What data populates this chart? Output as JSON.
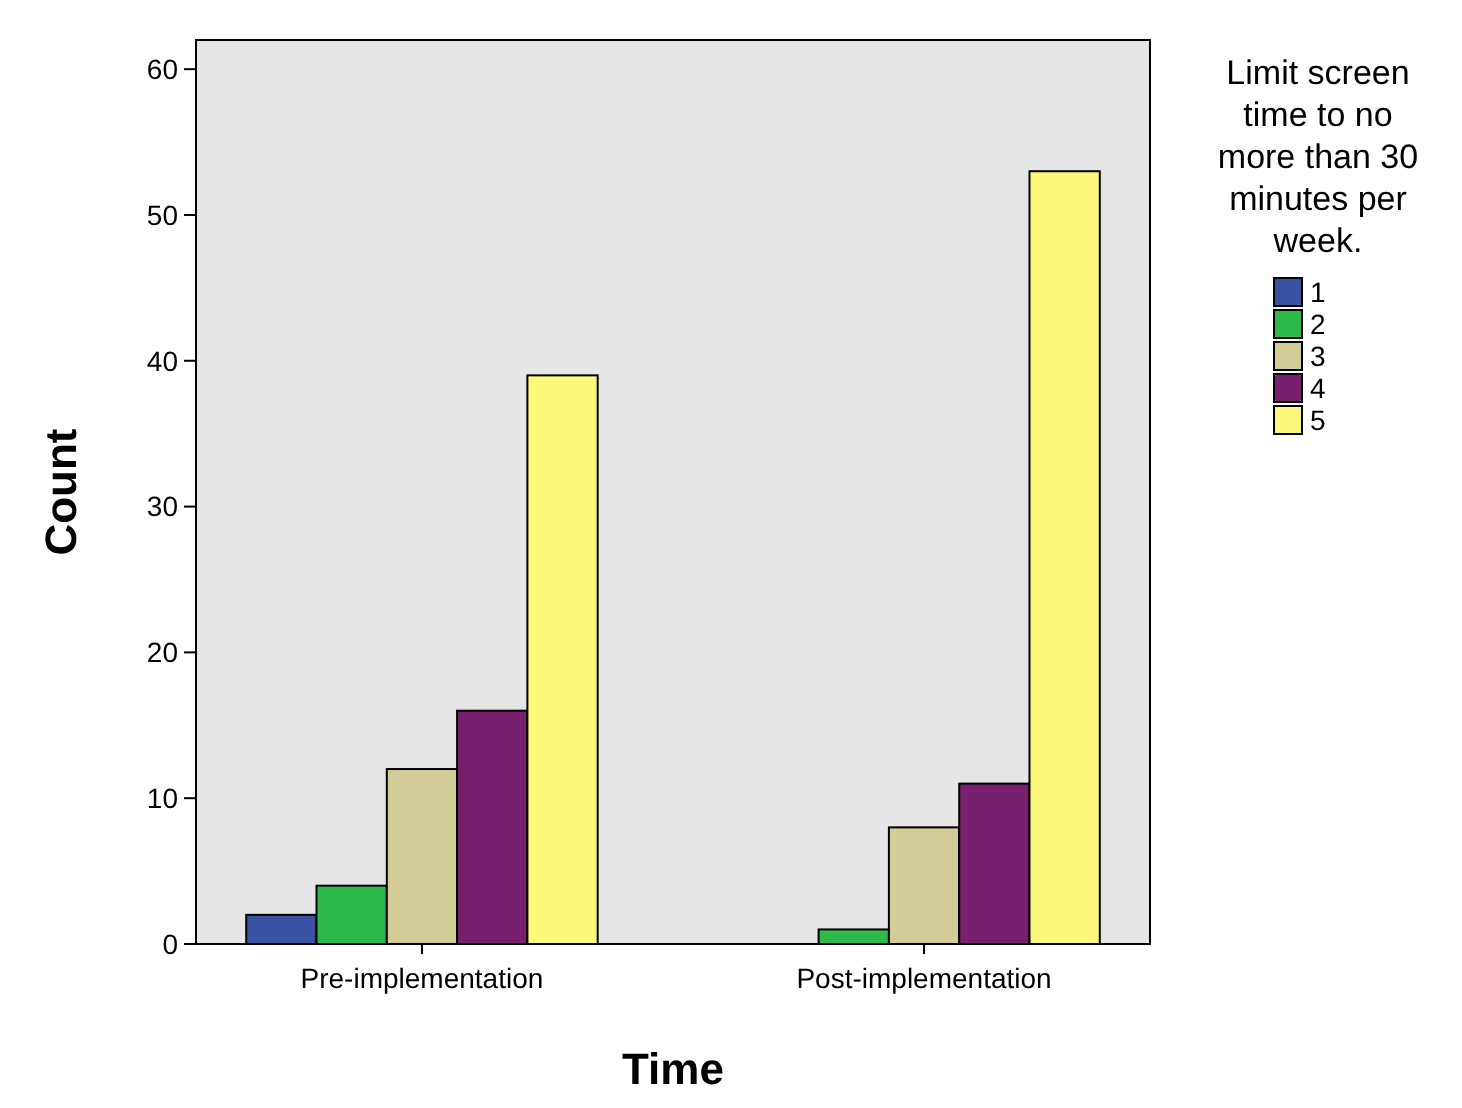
{
  "chart_data": {
    "type": "bar",
    "xlabel": "Time",
    "ylabel": "Count",
    "legend_title": "Limit screen time to no more than 30 minutes per week.",
    "categories": [
      "Pre-implementation",
      "Post-implementation"
    ],
    "series": [
      {
        "name": "1",
        "color": "#3953a4",
        "values": [
          2,
          0
        ]
      },
      {
        "name": "2",
        "color": "#2dba4a",
        "values": [
          4,
          1
        ]
      },
      {
        "name": "3",
        "color": "#d2cd97",
        "values": [
          12,
          8
        ]
      },
      {
        "name": "4",
        "color": "#781f6e",
        "values": [
          16,
          11
        ]
      },
      {
        "name": "5",
        "color": "#fbf87c",
        "values": [
          39,
          53
        ]
      }
    ],
    "ylim": [
      0,
      62
    ],
    "yticks": [
      0,
      10,
      20,
      30,
      40,
      50,
      60
    ],
    "grid": false,
    "legend": "right"
  }
}
